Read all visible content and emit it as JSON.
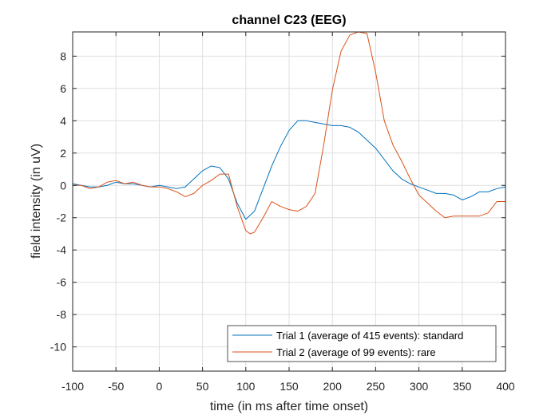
{
  "chart_data": {
    "type": "line",
    "title": "channel C23 (EEG)",
    "xlabel": "time (in ms after time onset)",
    "ylabel": "field intensity (in uV)",
    "xlim": [
      -100,
      400
    ],
    "ylim": [
      -11.5,
      9.5
    ],
    "xticks": [
      -100,
      -50,
      0,
      50,
      100,
      150,
      200,
      250,
      300,
      350,
      400
    ],
    "yticks": [
      -10,
      -8,
      -6,
      -4,
      -2,
      0,
      2,
      4,
      6,
      8
    ],
    "grid": true,
    "legend_position": "bottom-right",
    "series": [
      {
        "name": "Trial 1 (average of 415 events): standard",
        "color": "#0072BD",
        "x": [
          -100,
          -90,
          -80,
          -70,
          -60,
          -50,
          -40,
          -30,
          -20,
          -10,
          0,
          10,
          20,
          30,
          40,
          50,
          60,
          70,
          80,
          90,
          100,
          110,
          120,
          130,
          140,
          150,
          160,
          170,
          180,
          190,
          200,
          210,
          220,
          230,
          240,
          250,
          260,
          270,
          280,
          290,
          300,
          310,
          320,
          330,
          340,
          350,
          360,
          370,
          380,
          390,
          400
        ],
        "y": [
          0.1,
          0.0,
          -0.1,
          -0.1,
          0.0,
          0.2,
          0.1,
          0.1,
          0.0,
          -0.1,
          0.0,
          -0.1,
          -0.2,
          -0.1,
          0.4,
          0.9,
          1.2,
          1.1,
          0.4,
          -1.1,
          -2.1,
          -1.6,
          -0.2,
          1.2,
          2.4,
          3.4,
          4.0,
          4.0,
          3.9,
          3.8,
          3.7,
          3.7,
          3.6,
          3.3,
          2.8,
          2.3,
          1.6,
          0.9,
          0.4,
          0.1,
          -0.1,
          -0.3,
          -0.5,
          -0.5,
          -0.6,
          -0.9,
          -0.7,
          -0.4,
          -0.4,
          -0.2,
          -0.1
        ]
      },
      {
        "name": "Trial 2 (average of 99 events): rare",
        "color": "#D95319",
        "x": [
          -100,
          -90,
          -80,
          -70,
          -60,
          -50,
          -40,
          -30,
          -20,
          -10,
          0,
          10,
          20,
          30,
          40,
          50,
          60,
          70,
          80,
          90,
          100,
          105,
          110,
          120,
          130,
          140,
          150,
          160,
          170,
          180,
          190,
          200,
          210,
          220,
          230,
          240,
          250,
          260,
          270,
          280,
          290,
          300,
          310,
          320,
          330,
          340,
          350,
          360,
          370,
          380,
          390,
          400
        ],
        "y": [
          0.0,
          0.0,
          -0.2,
          -0.1,
          0.2,
          0.3,
          0.1,
          0.2,
          0.0,
          -0.1,
          -0.1,
          -0.2,
          -0.4,
          -0.7,
          -0.5,
          0.0,
          0.3,
          0.7,
          0.7,
          -1.3,
          -2.8,
          -3.0,
          -2.9,
          -2.0,
          -1.0,
          -1.3,
          -1.5,
          -1.6,
          -1.3,
          -0.5,
          2.5,
          5.9,
          8.3,
          9.3,
          9.5,
          9.4,
          7.0,
          4.0,
          2.5,
          1.5,
          0.4,
          -0.6,
          -1.1,
          -1.6,
          -2.0,
          -1.9,
          -1.9,
          -1.9,
          -1.9,
          -1.7,
          -1.0,
          -1.0
        ]
      }
    ]
  }
}
